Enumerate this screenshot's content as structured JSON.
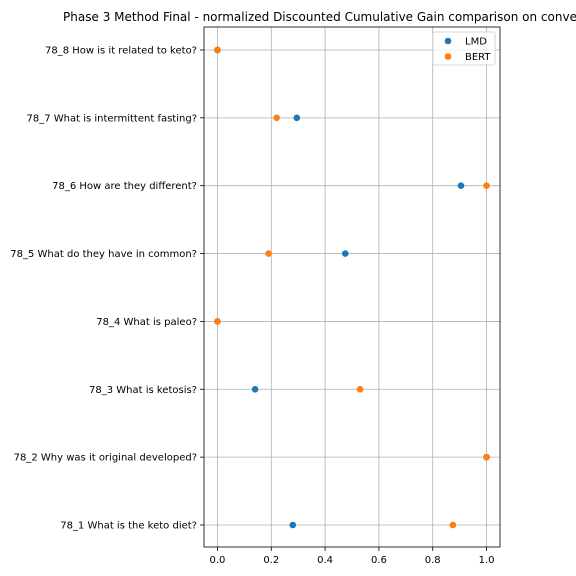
{
  "chart_data": {
    "type": "scatter",
    "title": "Phase 3 Method Final - normalized Discounted Cumulative Gain comparison on conve",
    "xlabel": "",
    "ylabel": "",
    "xlim": [
      -0.05,
      1.05
    ],
    "x_ticks": [
      0.0,
      0.2,
      0.4,
      0.6,
      0.8,
      1.0
    ],
    "x_tick_labels": [
      "0.0",
      "0.2",
      "0.4",
      "0.6",
      "0.8",
      "1.0"
    ],
    "categories": [
      "78_1 What is the keto diet?",
      "78_2 Why was it original developed?",
      "78_3 What is ketosis?",
      "78_4 What is paleo?",
      "78_5 What do they have in common?",
      "78_6 How are they different?",
      "78_7 What is intermittent fasting?",
      "78_8 How is it related to keto?"
    ],
    "grid": true,
    "legend_position": "top-right",
    "series": [
      {
        "name": "LMD",
        "color": "#1f77b4",
        "values": [
          0.28,
          1.0,
          0.14,
          0.0,
          0.475,
          0.905,
          0.295,
          0.0
        ]
      },
      {
        "name": "BERT",
        "color": "#ff7f0e",
        "values": [
          0.875,
          1.0,
          0.53,
          0.0,
          0.19,
          1.0,
          0.22,
          0.0
        ]
      }
    ]
  }
}
